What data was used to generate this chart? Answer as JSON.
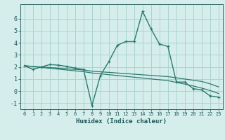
{
  "xlabel": "Humidex (Indice chaleur)",
  "bg_color": "#d5eeec",
  "grid_color": "#aad4d0",
  "line_color": "#2a7a6e",
  "xlim": [
    -0.5,
    23.5
  ],
  "ylim": [
    -1.5,
    7.2
  ],
  "yticks": [
    -1,
    0,
    1,
    2,
    3,
    4,
    5,
    6
  ],
  "xticks": [
    0,
    1,
    2,
    3,
    4,
    5,
    6,
    7,
    8,
    9,
    10,
    11,
    12,
    13,
    14,
    15,
    16,
    17,
    18,
    19,
    20,
    21,
    22,
    23
  ],
  "x": [
    0,
    1,
    2,
    3,
    4,
    5,
    6,
    7,
    8,
    9,
    10,
    11,
    12,
    13,
    14,
    15,
    16,
    17,
    18,
    19,
    20,
    21,
    22,
    23
  ],
  "y_curve": [
    2.1,
    1.8,
    2.0,
    2.2,
    2.15,
    2.05,
    1.9,
    1.8,
    -1.2,
    1.3,
    2.45,
    3.8,
    4.1,
    4.1,
    6.6,
    5.15,
    3.9,
    3.7,
    0.75,
    0.75,
    0.2,
    0.1,
    -0.4,
    -0.5
  ],
  "y_linear1": [
    2.1,
    2.05,
    2.0,
    1.95,
    1.9,
    1.85,
    1.8,
    1.75,
    1.65,
    1.6,
    1.55,
    1.5,
    1.45,
    1.4,
    1.35,
    1.3,
    1.25,
    1.2,
    1.1,
    1.0,
    0.9,
    0.8,
    0.6,
    0.35
  ],
  "y_linear2": [
    2.1,
    2.03,
    1.96,
    1.89,
    1.82,
    1.75,
    1.68,
    1.61,
    1.5,
    1.43,
    1.36,
    1.29,
    1.22,
    1.15,
    1.08,
    1.01,
    0.94,
    0.87,
    0.72,
    0.58,
    0.42,
    0.25,
    0.05,
    -0.2
  ]
}
